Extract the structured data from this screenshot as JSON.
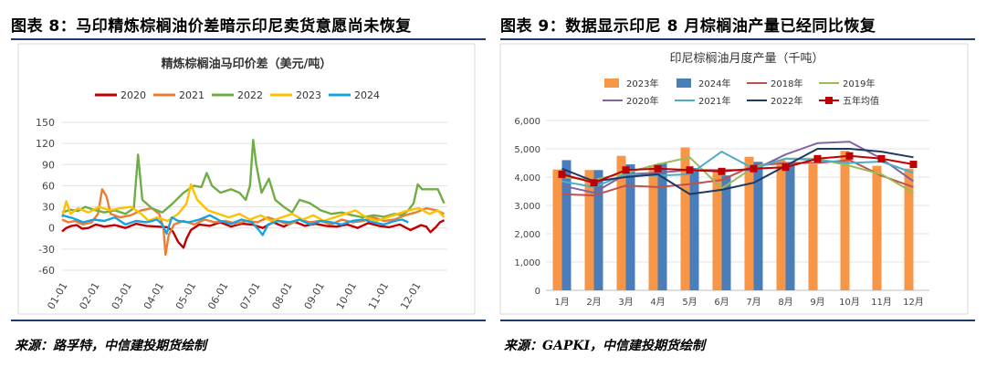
{
  "left": {
    "figure_title": "图表 8：马印精炼棕榈油价差暗示印尼卖货意愿尚未恢复",
    "source": "来源：路孚特，中信建投期货绘制"
  },
  "right": {
    "figure_title": "图表 9：数据显示印尼 8 月棕榈油产量已经同比恢复",
    "source": "来源：GAPKI，中信建投期货绘制"
  },
  "chart_data": [
    {
      "type": "line",
      "title": "精炼棕榈油马印价差（美元/吨）",
      "xlabel": "",
      "ylabel": "",
      "x_ticks": [
        "01-01",
        "02-01",
        "03-01",
        "04-01",
        "05-01",
        "06-01",
        "07-01",
        "08-01",
        "09-01",
        "10-01",
        "11-01",
        "12-01"
      ],
      "y_ticks": [
        -60,
        -30,
        0,
        30,
        60,
        90,
        120,
        150
      ],
      "ylim": [
        -60,
        150
      ],
      "grid": true,
      "legend_position": "top",
      "series": [
        {
          "name": "2020",
          "color": "#c00000",
          "points": [
            [
              0,
              -5
            ],
            [
              4,
              0
            ],
            [
              9,
              3
            ],
            [
              14,
              4
            ],
            [
              19,
              -1
            ],
            [
              25,
              0
            ],
            [
              32,
              5
            ],
            [
              40,
              2
            ],
            [
              50,
              4
            ],
            [
              60,
              0
            ],
            [
              70,
              6
            ],
            [
              80,
              3
            ],
            [
              90,
              2
            ],
            [
              100,
              1
            ],
            [
              105,
              -5
            ],
            [
              110,
              -20
            ],
            [
              115,
              -28
            ],
            [
              118,
              -15
            ],
            [
              122,
              -3
            ],
            [
              130,
              5
            ],
            [
              140,
              3
            ],
            [
              150,
              8
            ],
            [
              160,
              2
            ],
            [
              170,
              6
            ],
            [
              180,
              5
            ],
            [
              190,
              0
            ],
            [
              200,
              8
            ],
            [
              210,
              2
            ],
            [
              220,
              9
            ],
            [
              230,
              3
            ],
            [
              240,
              6
            ],
            [
              250,
              3
            ],
            [
              260,
              2
            ],
            [
              270,
              5
            ],
            [
              280,
              0
            ],
            [
              290,
              7
            ],
            [
              300,
              3
            ],
            [
              310,
              1
            ],
            [
              320,
              5
            ],
            [
              330,
              -3
            ],
            [
              340,
              4
            ],
            [
              345,
              2
            ],
            [
              349,
              -6
            ],
            [
              354,
              1
            ],
            [
              358,
              8
            ],
            [
              362,
              11
            ]
          ]
        },
        {
          "name": "2021",
          "color": "#ed7d31",
          "points": [
            [
              0,
              12
            ],
            [
              6,
              8
            ],
            [
              12,
              10
            ],
            [
              20,
              5
            ],
            [
              28,
              8
            ],
            [
              34,
              20
            ],
            [
              38,
              55
            ],
            [
              42,
              45
            ],
            [
              46,
              20
            ],
            [
              55,
              15
            ],
            [
              65,
              18
            ],
            [
              75,
              25
            ],
            [
              85,
              28
            ],
            [
              92,
              20
            ],
            [
              96,
              0
            ],
            [
              98,
              -38
            ],
            [
              101,
              -10
            ],
            [
              106,
              5
            ],
            [
              115,
              10
            ],
            [
              125,
              5
            ],
            [
              135,
              12
            ],
            [
              145,
              8
            ],
            [
              155,
              10
            ],
            [
              165,
              6
            ],
            [
              175,
              10
            ],
            [
              185,
              8
            ],
            [
              195,
              15
            ],
            [
              205,
              10
            ],
            [
              215,
              5
            ],
            [
              225,
              12
            ],
            [
              235,
              8
            ],
            [
              245,
              10
            ],
            [
              255,
              5
            ],
            [
              265,
              12
            ],
            [
              275,
              8
            ],
            [
              285,
              10
            ],
            [
              295,
              15
            ],
            [
              305,
              10
            ],
            [
              315,
              12
            ],
            [
              325,
              18
            ],
            [
              335,
              22
            ],
            [
              345,
              28
            ],
            [
              355,
              25
            ],
            [
              362,
              20
            ]
          ]
        },
        {
          "name": "2022",
          "color": "#70ad47",
          "points": [
            [
              0,
              22
            ],
            [
              8,
              26
            ],
            [
              15,
              24
            ],
            [
              22,
              30
            ],
            [
              30,
              26
            ],
            [
              40,
              22
            ],
            [
              50,
              25
            ],
            [
              60,
              20
            ],
            [
              68,
              28
            ],
            [
              72,
              104
            ],
            [
              76,
              40
            ],
            [
              85,
              28
            ],
            [
              95,
              22
            ],
            [
              105,
              35
            ],
            [
              115,
              50
            ],
            [
              125,
              60
            ],
            [
              132,
              58
            ],
            [
              137,
              78
            ],
            [
              142,
              60
            ],
            [
              150,
              50
            ],
            [
              160,
              55
            ],
            [
              168,
              50
            ],
            [
              174,
              40
            ],
            [
              178,
              60
            ],
            [
              181,
              125
            ],
            [
              184,
              90
            ],
            [
              189,
              50
            ],
            [
              196,
              70
            ],
            [
              202,
              40
            ],
            [
              210,
              30
            ],
            [
              218,
              22
            ],
            [
              225,
              40
            ],
            [
              235,
              35
            ],
            [
              245,
              25
            ],
            [
              255,
              20
            ],
            [
              265,
              22
            ],
            [
              275,
              18
            ],
            [
              285,
              15
            ],
            [
              295,
              18
            ],
            [
              305,
              16
            ],
            [
              315,
              20
            ],
            [
              322,
              18
            ],
            [
              328,
              25
            ],
            [
              333,
              35
            ],
            [
              337,
              62
            ],
            [
              341,
              55
            ],
            [
              348,
              55
            ],
            [
              356,
              55
            ],
            [
              362,
              35
            ]
          ]
        },
        {
          "name": "2023",
          "color": "#ffc000",
          "points": [
            [
              0,
              15
            ],
            [
              4,
              38
            ],
            [
              8,
              20
            ],
            [
              15,
              28
            ],
            [
              25,
              22
            ],
            [
              35,
              30
            ],
            [
              45,
              25
            ],
            [
              55,
              28
            ],
            [
              65,
              30
            ],
            [
              75,
              20
            ],
            [
              82,
              10
            ],
            [
              90,
              15
            ],
            [
              100,
              10
            ],
            [
              110,
              20
            ],
            [
              118,
              35
            ],
            [
              122,
              62
            ],
            [
              128,
              40
            ],
            [
              138,
              25
            ],
            [
              148,
              20
            ],
            [
              158,
              15
            ],
            [
              168,
              20
            ],
            [
              178,
              12
            ],
            [
              188,
              18
            ],
            [
              198,
              10
            ],
            [
              208,
              15
            ],
            [
              218,
              20
            ],
            [
              228,
              12
            ],
            [
              238,
              18
            ],
            [
              248,
              10
            ],
            [
              258,
              15
            ],
            [
              268,
              20
            ],
            [
              278,
              25
            ],
            [
              288,
              15
            ],
            [
              298,
              10
            ],
            [
              308,
              15
            ],
            [
              318,
              20
            ],
            [
              328,
              25
            ],
            [
              338,
              28
            ],
            [
              348,
              20
            ],
            [
              356,
              25
            ],
            [
              362,
              15
            ]
          ]
        },
        {
          "name": "2024",
          "color": "#17a2e0",
          "points": [
            [
              0,
              18
            ],
            [
              10,
              14
            ],
            [
              20,
              8
            ],
            [
              30,
              12
            ],
            [
              40,
              10
            ],
            [
              50,
              15
            ],
            [
              60,
              5
            ],
            [
              70,
              10
            ],
            [
              80,
              8
            ],
            [
              90,
              12
            ],
            [
              95,
              5
            ],
            [
              99,
              -8
            ],
            [
              104,
              15
            ],
            [
              110,
              10
            ],
            [
              120,
              8
            ],
            [
              130,
              12
            ],
            [
              140,
              18
            ],
            [
              150,
              10
            ],
            [
              160,
              6
            ],
            [
              170,
              12
            ],
            [
              180,
              8
            ],
            [
              186,
              -2
            ],
            [
              190,
              -10
            ],
            [
              195,
              5
            ],
            [
              205,
              10
            ],
            [
              215,
              8
            ],
            [
              225,
              12
            ],
            [
              235,
              5
            ],
            [
              245,
              10
            ],
            [
              255,
              8
            ],
            [
              265,
              5
            ],
            [
              275,
              10
            ],
            [
              285,
              12
            ],
            [
              295,
              8
            ],
            [
              305,
              5
            ],
            [
              315,
              10
            ],
            [
              322,
              12
            ],
            [
              328,
              8
            ]
          ]
        }
      ]
    },
    {
      "type": "bar+line",
      "title": "印尼棕榈油月度产量（千吨）",
      "xlabel": "",
      "ylabel": "",
      "categories": [
        "1月",
        "2月",
        "3月",
        "4月",
        "5月",
        "6月",
        "7月",
        "8月",
        "9月",
        "10月",
        "11月",
        "12月"
      ],
      "y_ticks": [
        0,
        1000,
        2000,
        3000,
        4000,
        5000,
        6000
      ],
      "ylim": [
        0,
        6000
      ],
      "grid": true,
      "legend_position": "top",
      "bar_series": [
        {
          "name": "2023年",
          "color": "#f79646",
          "values": [
            4270,
            4250,
            4750,
            4420,
            5050,
            4230,
            4720,
            4600,
            4450,
            4930,
            4400,
            4300
          ]
        },
        {
          "name": "2024年",
          "color": "#4a7ebb",
          "values": [
            4600,
            4250,
            4450,
            4500,
            4320,
            4060,
            4540,
            4490,
            null,
            null,
            null,
            null
          ]
        }
      ],
      "line_series": [
        {
          "name": "2018年",
          "color": "#c0504d",
          "values": [
            3400,
            3350,
            3700,
            3650,
            3750,
            3900,
            4400,
            4500,
            4500,
            4600,
            4050,
            3650
          ]
        },
        {
          "name": "2019年",
          "color": "#9bbb59",
          "values": [
            4000,
            3900,
            4150,
            4450,
            4700,
            3600,
            4350,
            4650,
            4650,
            4400,
            4100,
            3450
          ]
        },
        {
          "name": "2020年",
          "color": "#8064a2",
          "values": [
            3700,
            3450,
            4100,
            4150,
            4250,
            4250,
            4250,
            4800,
            5200,
            5250,
            4650,
            3850
          ]
        },
        {
          "name": "2021年",
          "color": "#4bacc6",
          "values": [
            3850,
            3650,
            4100,
            4050,
            4100,
            4900,
            4300,
            4650,
            4600,
            4500,
            4550,
            4150
          ]
        },
        {
          "name": "2022年",
          "color": "#1f3864",
          "values": [
            4300,
            3850,
            4000,
            4100,
            3400,
            3550,
            3800,
            4400,
            5000,
            5000,
            4900,
            4700
          ]
        },
        {
          "name": "五年均值",
          "color": "#c00000",
          "marker": "square",
          "values": [
            4100,
            3800,
            4250,
            4300,
            4250,
            4200,
            4300,
            4350,
            4650,
            4750,
            4650,
            4450
          ]
        }
      ]
    }
  ]
}
